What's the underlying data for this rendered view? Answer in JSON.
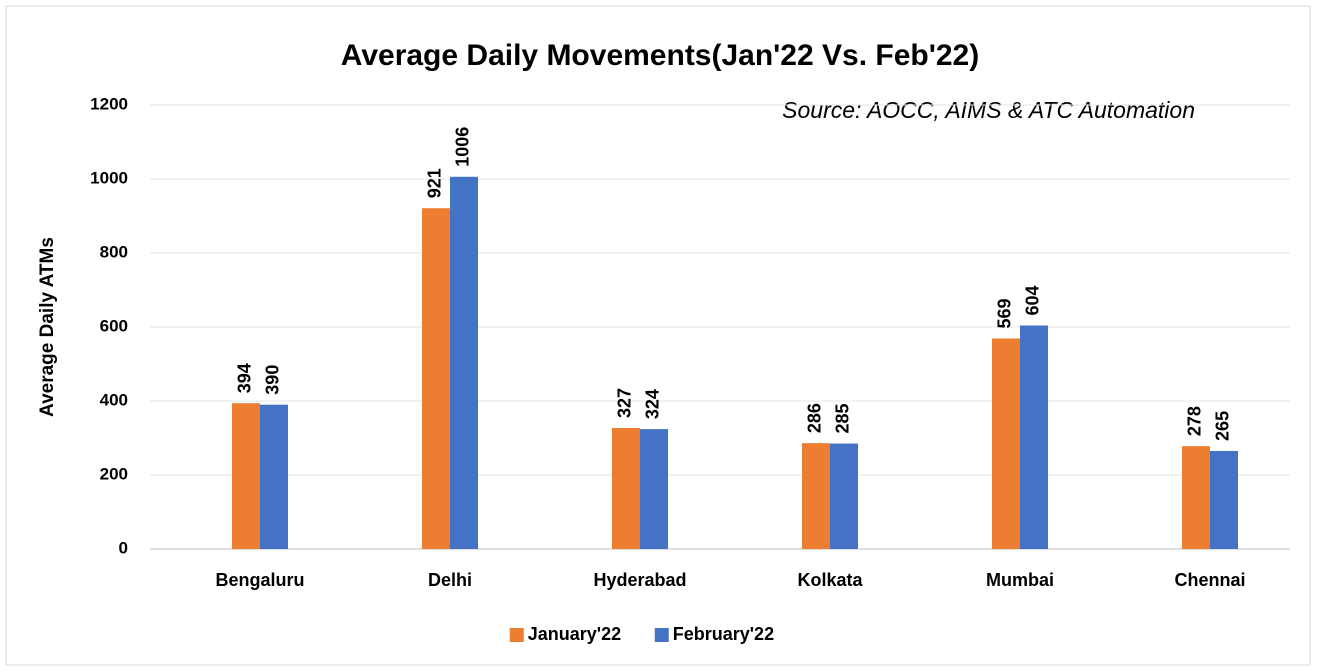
{
  "chart_data": {
    "type": "bar",
    "title": "Average Daily Movements(Jan'22 Vs. Feb'22)",
    "annotation": "Source: AOCC, AIMS & ATC Automation",
    "y_label": "Average Daily ATMs",
    "categories": [
      "Bengaluru",
      "Delhi",
      "Hyderabad",
      "Kolkata",
      "Mumbai",
      "Chennai"
    ],
    "series": [
      {
        "name": "January'22",
        "color": "#ed7d31",
        "values": [
          394,
          921,
          327,
          286,
          569,
          278
        ]
      },
      {
        "name": "February'22",
        "color": "#4472c4",
        "values": [
          390,
          1006,
          324,
          285,
          604,
          265
        ]
      }
    ],
    "ylim": [
      0,
      1200
    ],
    "yticks": [
      0,
      200,
      400,
      600,
      800,
      1000,
      1200
    ],
    "grid": true,
    "legend": "bottom"
  }
}
